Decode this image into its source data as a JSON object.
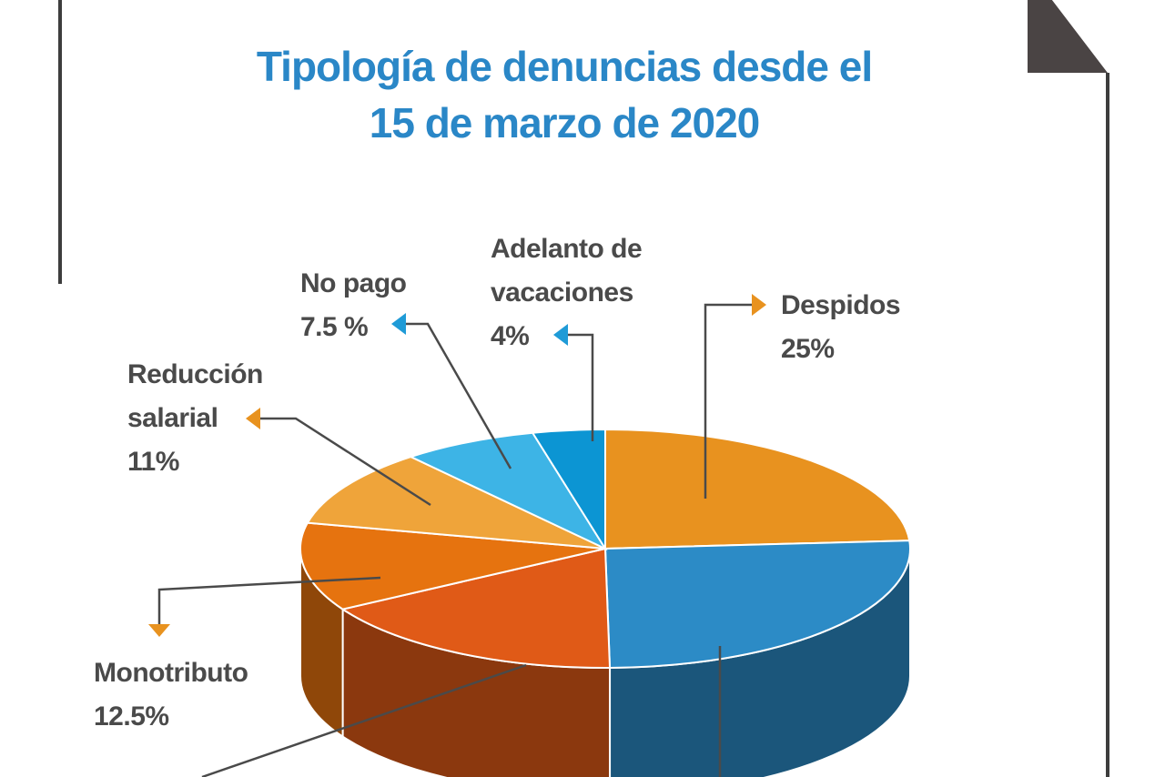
{
  "chart_data": {
    "type": "pie",
    "title_line1": "Tipología de denuncias desde el",
    "title_line2": "15 de marzo de 2020",
    "slices": [
      {
        "label_lines": [
          "Despidos"
        ],
        "value_text": "25%",
        "value": 25,
        "color": "#e8921f"
      },
      {
        "label_lines": [],
        "value_text": "",
        "value": 27,
        "color": "#2c8bc6"
      },
      {
        "label_lines": [],
        "value_text": "",
        "value": 17.5,
        "color": "#e05a17"
      },
      {
        "label_lines": [
          "Monotributo"
        ],
        "value_text": "12.5%",
        "value": 12.5,
        "color": "#e6730f"
      },
      {
        "label_lines": [
          "Reducción",
          "salarial"
        ],
        "value_text": "11%",
        "value": 11,
        "color": "#efa43a"
      },
      {
        "label_lines": [
          "No pago"
        ],
        "value_text": "7.5 %",
        "value": 7.5,
        "color": "#3db4e6"
      },
      {
        "label_lines": [
          "Adelanto de",
          "vacaciones"
        ],
        "value_text": "4%",
        "value": 4,
        "color": "#0c95d3"
      }
    ]
  },
  "colors": {
    "title": "#2a87c7",
    "label_text": "#4a4a4a",
    "leader_line": "#4a4a4a",
    "frame": "#3d3d3d",
    "arrow_orange": "#e8921f",
    "arrow_blue": "#1f9bd7"
  }
}
